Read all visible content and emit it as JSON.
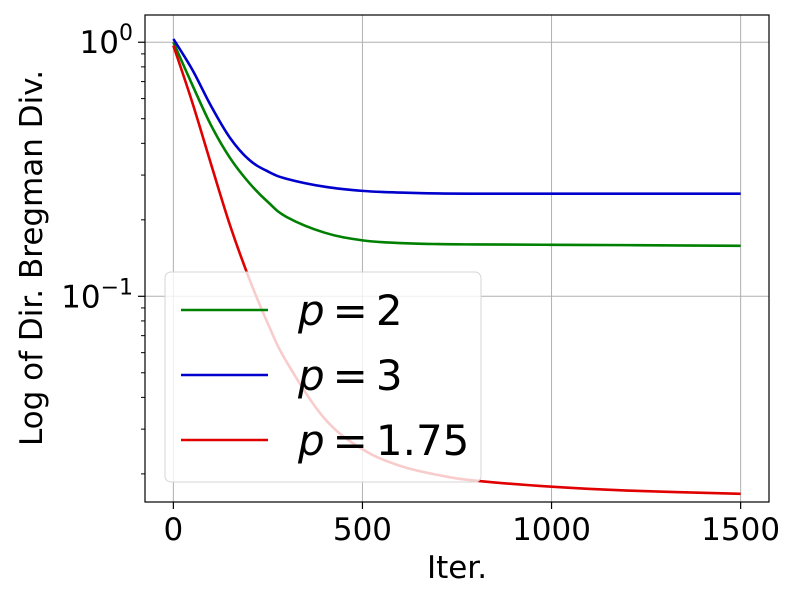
{
  "chart_data": {
    "type": "line",
    "xlabel": "Iter.",
    "ylabel": "Log of Dir. Bregman Div.",
    "xlim": [
      -75,
      1575
    ],
    "ylim": [
      0.0155,
      1.28
    ],
    "yscale": "log",
    "grid": true,
    "legend_position": "lower-left",
    "x_ticks": [
      0,
      500,
      1000,
      1500
    ],
    "x_tick_labels": [
      "0",
      "500",
      "1000",
      "1500"
    ],
    "y_ticks": [
      1,
      0.1
    ],
    "y_tick_bases": [
      "10",
      "10"
    ],
    "y_tick_exps": [
      "0",
      "−1"
    ],
    "x": [
      0,
      50,
      100,
      150,
      200,
      250,
      300,
      400,
      500,
      600,
      700,
      800,
      1000,
      1200,
      1500
    ],
    "series": [
      {
        "name_var": "p",
        "name_eq": "=",
        "name_val": "2",
        "color": "#008000",
        "values": [
          1.0,
          0.68,
          0.47,
          0.35,
          0.28,
          0.235,
          0.205,
          0.178,
          0.166,
          0.162,
          0.1605,
          0.16,
          0.1595,
          0.159,
          0.158
        ]
      },
      {
        "name_var": "p",
        "name_eq": "=",
        "name_val": "3",
        "color": "#0000cc",
        "values": [
          1.03,
          0.78,
          0.56,
          0.42,
          0.345,
          0.31,
          0.29,
          0.27,
          0.26,
          0.256,
          0.254,
          0.2535,
          0.2535,
          0.2535,
          0.2535
        ]
      },
      {
        "name_var": "p",
        "name_eq": "=",
        "name_val": "1.75",
        "color": "#e00000",
        "values": [
          0.97,
          0.58,
          0.33,
          0.19,
          0.118,
          0.078,
          0.055,
          0.033,
          0.025,
          0.0215,
          0.0198,
          0.0188,
          0.0178,
          0.0172,
          0.0167
        ]
      }
    ]
  }
}
